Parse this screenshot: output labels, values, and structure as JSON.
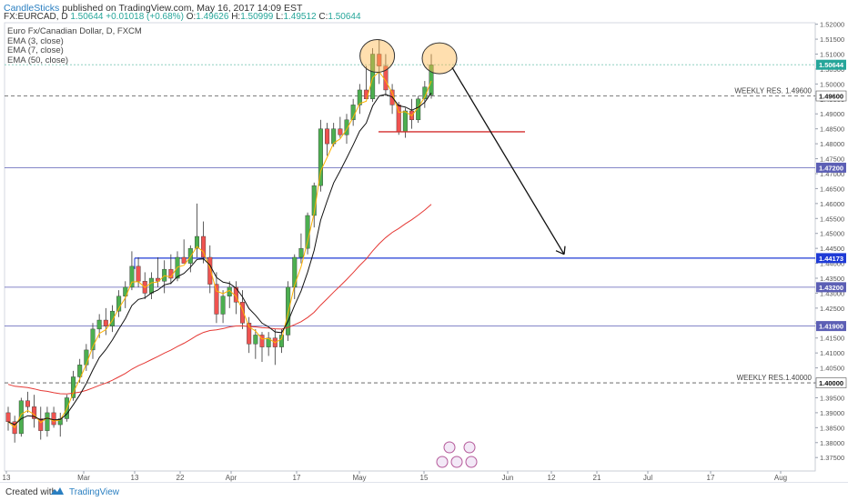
{
  "header": {
    "author": "CandleSticks",
    "published": "published on TradingView.com, May 16, 2017 14:09 EST",
    "symbol": "FX:EURCAD, D",
    "last": "1.50644",
    "change": "+0.01018 (+0.68%)",
    "open_label": "O:",
    "open": "1.49626",
    "high_label": "H:",
    "high": "1.50999",
    "low_label": "L:",
    "low": "1.49512",
    "close_label": "C:",
    "close": "1.50644"
  },
  "legend": {
    "title": "Euro Fx/Canadian Dollar, D, FXCM",
    "ema3": "EMA (3, close)",
    "ema7": "EMA (7, close)",
    "ema50": "EMA (50, close)"
  },
  "footer": {
    "created": "Created with",
    "brand": "TradingView"
  },
  "colors": {
    "up": "#26a69a",
    "up_fill": "#4caf50",
    "down": "#ef5350",
    "ema3": "#ffb300",
    "ema7": "#111111",
    "ema50": "#e53935",
    "level": "#5c5fb5",
    "blue_level": "#1f3bd6",
    "red_level": "#d32f2f"
  },
  "chart_data": {
    "type": "candlestick",
    "ylim": [
      1.3705,
      1.5205
    ],
    "y_ticks": [
      "1.37500",
      "1.38000",
      "1.38500",
      "1.39000",
      "1.39500",
      "1.40000",
      "1.40500",
      "1.41000",
      "1.41500",
      "1.42000",
      "1.42500",
      "1.43000",
      "1.43500",
      "1.44000",
      "1.44500",
      "1.45000",
      "1.45500",
      "1.46000",
      "1.46500",
      "1.47000",
      "1.47500",
      "1.48000",
      "1.48500",
      "1.49000",
      "1.49500",
      "1.50000",
      "1.50500",
      "1.51000",
      "1.51500",
      "1.52000"
    ],
    "x_ticks": [
      "13",
      "Mar",
      "13",
      "22",
      "Apr",
      "17",
      "May",
      "15",
      "Jun",
      "12",
      "21",
      "Jul",
      "17",
      "Aug"
    ],
    "price_labels": [
      {
        "text": "1.50644",
        "value": 1.50644,
        "style": "last"
      },
      {
        "text": "1.49600",
        "value": 1.496,
        "style": "dark"
      },
      {
        "text": "1.47200",
        "value": 1.472,
        "style": "level"
      },
      {
        "text": "1.44173",
        "value": 1.44173,
        "style": "blue"
      },
      {
        "text": "1.43200",
        "value": 1.432,
        "style": "level"
      },
      {
        "text": "1.41900",
        "value": 1.419,
        "style": "level"
      },
      {
        "text": "1.40000",
        "value": 1.4,
        "style": "dark"
      }
    ],
    "levels": [
      {
        "value": 1.496,
        "style": "dashed",
        "label": "WEEKLY RES. 1.49600"
      },
      {
        "value": 1.4,
        "style": "dashed",
        "label": "WEEKLY RES.1.40000"
      },
      {
        "value": 1.472,
        "style": "solid"
      },
      {
        "value": 1.432,
        "style": "solid"
      },
      {
        "value": 1.419,
        "style": "solid"
      },
      {
        "value": 1.44173,
        "style": "blue"
      },
      {
        "value": 1.50644,
        "style": "dotted"
      }
    ],
    "candles": [
      [
        1.39,
        1.392,
        1.384,
        1.387
      ],
      [
        1.387,
        1.389,
        1.38,
        1.383
      ],
      [
        1.383,
        1.395,
        1.382,
        1.394
      ],
      [
        1.394,
        1.397,
        1.39,
        1.392
      ],
      [
        1.392,
        1.396,
        1.385,
        1.388
      ],
      [
        1.388,
        1.392,
        1.381,
        1.384
      ],
      [
        1.384,
        1.392,
        1.382,
        1.39
      ],
      [
        1.39,
        1.392,
        1.385,
        1.386
      ],
      [
        1.386,
        1.39,
        1.382,
        1.388
      ],
      [
        1.388,
        1.396,
        1.387,
        1.395
      ],
      [
        1.395,
        1.404,
        1.394,
        1.402
      ],
      [
        1.402,
        1.408,
        1.4,
        1.406
      ],
      [
        1.406,
        1.413,
        1.404,
        1.411
      ],
      [
        1.411,
        1.42,
        1.408,
        1.418
      ],
      [
        1.418,
        1.423,
        1.415,
        1.421
      ],
      [
        1.421,
        1.425,
        1.416,
        1.419
      ],
      [
        1.419,
        1.426,
        1.417,
        1.424
      ],
      [
        1.424,
        1.431,
        1.422,
        1.429
      ],
      [
        1.429,
        1.434,
        1.425,
        1.432
      ],
      [
        1.432,
        1.444,
        1.431,
        1.439
      ],
      [
        1.439,
        1.442,
        1.432,
        1.434
      ],
      [
        1.434,
        1.437,
        1.428,
        1.43
      ],
      [
        1.43,
        1.437,
        1.428,
        1.435
      ],
      [
        1.435,
        1.442,
        1.432,
        1.434
      ],
      [
        1.434,
        1.441,
        1.43,
        1.438
      ],
      [
        1.438,
        1.443,
        1.433,
        1.435
      ],
      [
        1.435,
        1.444,
        1.434,
        1.442
      ],
      [
        1.442,
        1.448,
        1.44,
        1.44
      ],
      [
        1.44,
        1.446,
        1.437,
        1.445
      ],
      [
        1.445,
        1.46,
        1.442,
        1.449
      ],
      [
        1.449,
        1.454,
        1.44,
        1.442
      ],
      [
        1.442,
        1.446,
        1.43,
        1.433
      ],
      [
        1.433,
        1.437,
        1.42,
        1.423
      ],
      [
        1.423,
        1.431,
        1.42,
        1.429
      ],
      [
        1.429,
        1.434,
        1.425,
        1.432
      ],
      [
        1.432,
        1.434,
        1.423,
        1.427
      ],
      [
        1.427,
        1.431,
        1.418,
        1.42
      ],
      [
        1.42,
        1.422,
        1.41,
        1.413
      ],
      [
        1.413,
        1.418,
        1.408,
        1.416
      ],
      [
        1.416,
        1.417,
        1.407,
        1.412
      ],
      [
        1.412,
        1.417,
        1.409,
        1.415
      ],
      [
        1.415,
        1.418,
        1.406,
        1.412
      ],
      [
        1.412,
        1.418,
        1.41,
        1.416
      ],
      [
        1.416,
        1.434,
        1.414,
        1.432
      ],
      [
        1.432,
        1.443,
        1.428,
        1.442
      ],
      [
        1.442,
        1.45,
        1.44,
        1.445
      ],
      [
        1.445,
        1.457,
        1.443,
        1.456
      ],
      [
        1.456,
        1.467,
        1.452,
        1.466
      ],
      [
        1.466,
        1.488,
        1.464,
        1.485
      ],
      [
        1.485,
        1.487,
        1.476,
        1.48
      ],
      [
        1.48,
        1.487,
        1.479,
        1.485
      ],
      [
        1.485,
        1.489,
        1.482,
        1.483
      ],
      [
        1.483,
        1.49,
        1.48,
        1.488
      ],
      [
        1.488,
        1.495,
        1.486,
        1.493
      ],
      [
        1.493,
        1.5,
        1.49,
        1.498
      ],
      [
        1.498,
        1.506,
        1.495,
        1.495
      ],
      [
        1.495,
        1.512,
        1.494,
        1.51
      ],
      [
        1.51,
        1.515,
        1.5,
        1.506
      ],
      [
        1.506,
        1.51,
        1.496,
        1.498
      ],
      [
        1.498,
        1.5,
        1.49,
        1.493
      ],
      [
        1.493,
        1.494,
        1.483,
        1.484
      ],
      [
        1.484,
        1.492,
        1.482,
        1.491
      ],
      [
        1.491,
        1.495,
        1.485,
        1.488
      ],
      [
        1.488,
        1.496,
        1.487,
        1.495
      ],
      [
        1.495,
        1.501,
        1.492,
        1.499
      ],
      [
        1.4963,
        1.51,
        1.4951,
        1.5064
      ]
    ]
  }
}
